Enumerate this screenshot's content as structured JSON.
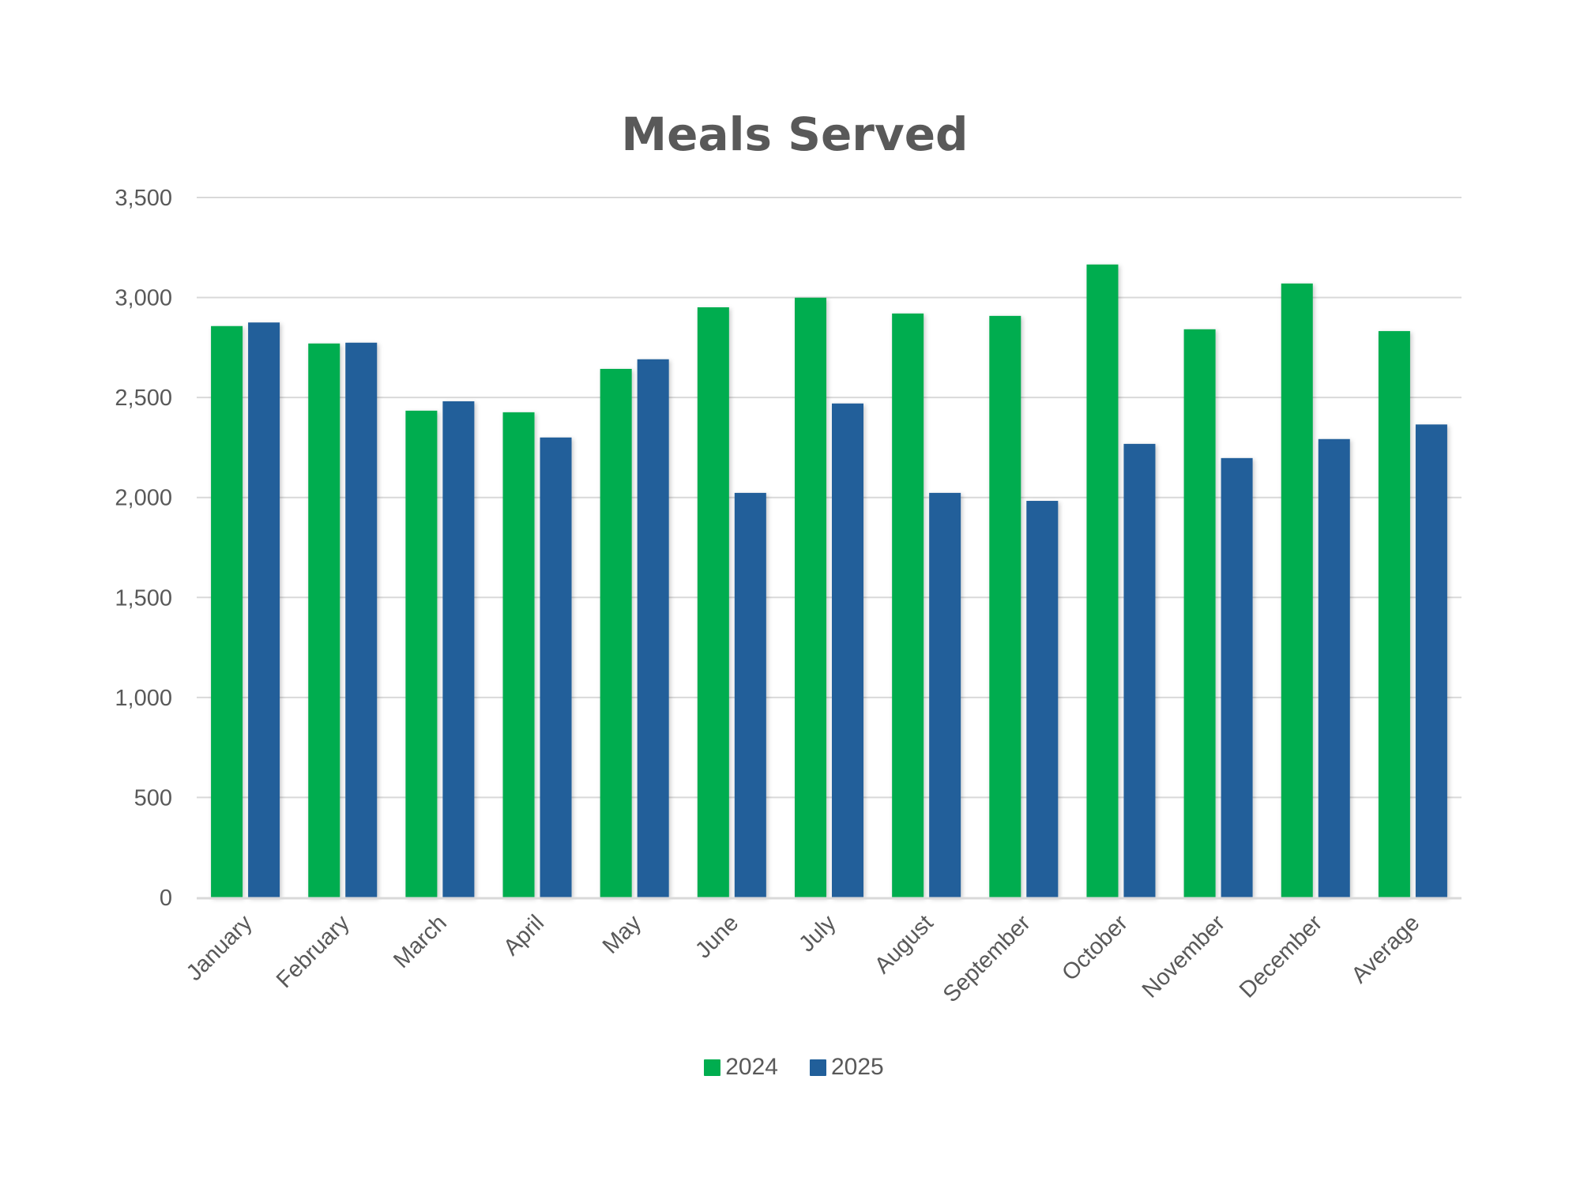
{
  "chart_data": {
    "type": "bar",
    "title": "Meals Served",
    "xlabel": "",
    "ylabel": "",
    "categories": [
      "January",
      "February",
      "March",
      "April",
      "May",
      "June",
      "July",
      "August",
      "September",
      "October",
      "November",
      "December",
      "Average"
    ],
    "series": [
      {
        "name": "2024",
        "color": "#00AD4F",
        "values": [
          2857,
          2770,
          2434,
          2426,
          2643,
          2951,
          2999,
          2920,
          2908,
          3165,
          2841,
          3070,
          2832
        ]
      },
      {
        "name": "2025",
        "color": "#215F9A",
        "values": [
          2875,
          2774,
          2481,
          2300,
          2691,
          2023,
          2470,
          2023,
          1983,
          2268,
          2197,
          2292,
          2365
        ]
      }
    ],
    "ylim": [
      0,
      3500
    ],
    "yticks": [
      0,
      500,
      1000,
      1500,
      2000,
      2500,
      3000,
      3500
    ],
    "ytick_labels": [
      "0",
      "500",
      "1,000",
      "1,500",
      "2,000",
      "2,500",
      "3,000",
      "3,500"
    ],
    "grid": true,
    "legend_position": "bottom-center",
    "x_label_rotation_deg": -45
  }
}
